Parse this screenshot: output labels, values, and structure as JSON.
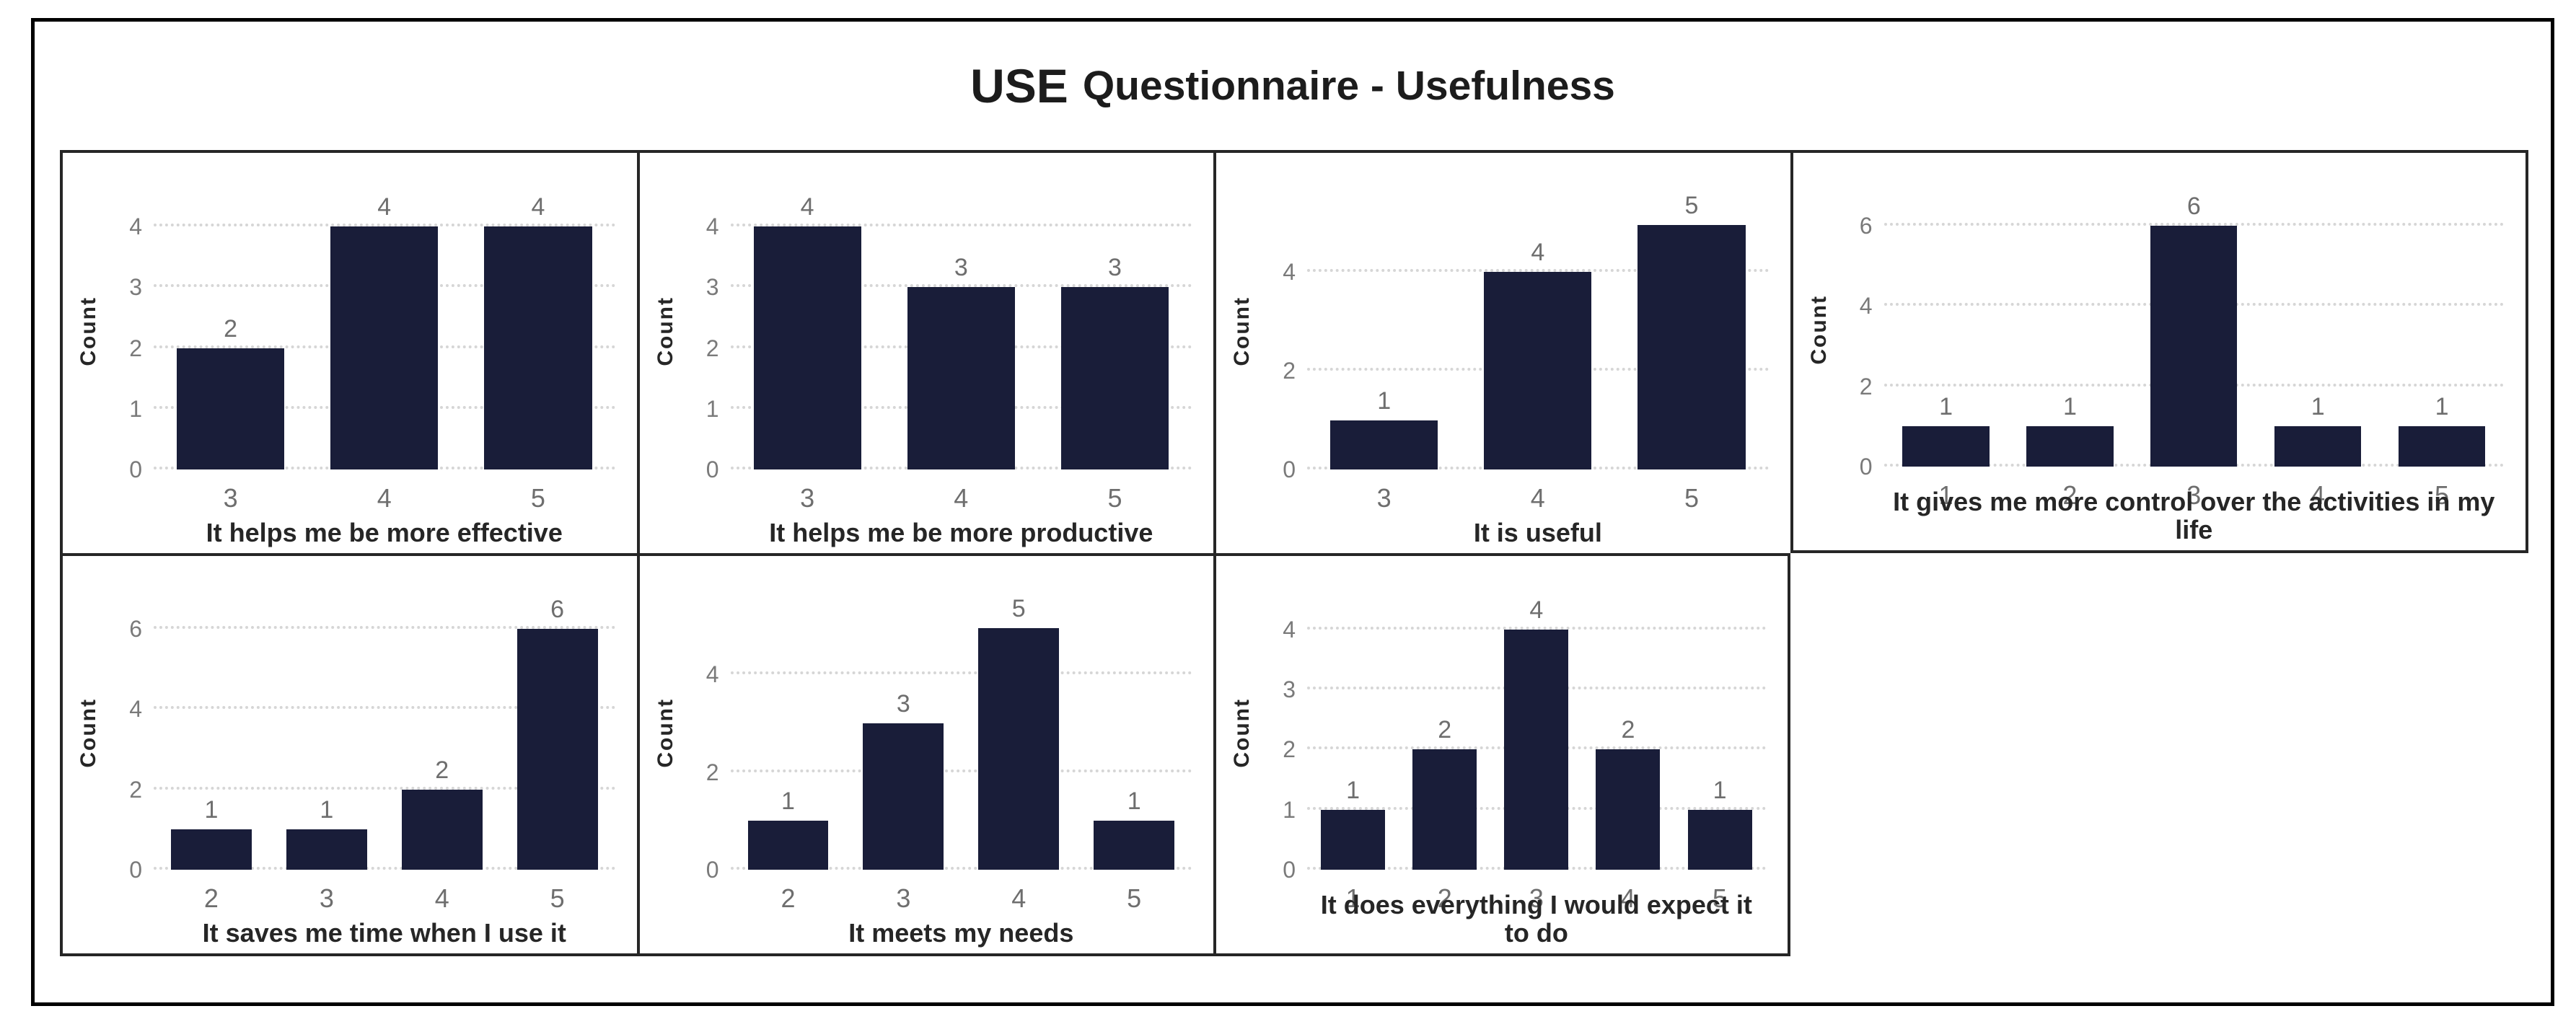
{
  "title": {
    "use": "USE",
    "rest": "Questionnaire - Usefulness",
    "full": "USE Questionnaire - Usefulness"
  },
  "colors": {
    "bar": "#191d39",
    "gridline": "#d6d6d6",
    "tick_label": "#7a7a7a",
    "value_label": "#6e6e6e",
    "axis_title": "#262626",
    "border": "#262626"
  },
  "chart_data": [
    {
      "type": "bar",
      "xlabel": "It helps me be more effective",
      "ylabel": "Count",
      "categories": [
        "3",
        "4",
        "5"
      ],
      "values": [
        2,
        4,
        4
      ],
      "yticks": [
        0,
        1,
        2,
        3,
        4
      ],
      "ymax": 4.55,
      "grid_on": true,
      "row": 1,
      "col": 1
    },
    {
      "type": "bar",
      "xlabel": "It helps me be more productive",
      "ylabel": "Count",
      "categories": [
        "3",
        "4",
        "5"
      ],
      "values": [
        4,
        3,
        3
      ],
      "yticks": [
        0,
        1,
        2,
        3,
        4
      ],
      "ymax": 4.55,
      "grid_on": true,
      "row": 1,
      "col": 2
    },
    {
      "type": "bar",
      "xlabel": "It is useful",
      "ylabel": "Count",
      "categories": [
        "3",
        "4",
        "5"
      ],
      "values": [
        1,
        4,
        5
      ],
      "yticks": [
        0,
        2,
        4
      ],
      "ymax": 5.6,
      "grid_on": true,
      "row": 1,
      "col": 3
    },
    {
      "type": "bar",
      "xlabel": "It gives me more control over the activities in my life",
      "ylabel": "Count",
      "categories": [
        "1",
        "2",
        "3",
        "4",
        "5"
      ],
      "values": [
        1,
        1,
        6,
        1,
        1
      ],
      "yticks": [
        0,
        2,
        4,
        6
      ],
      "ymax": 6.8,
      "grid_on": true,
      "row": 1,
      "col": 4
    },
    {
      "type": "bar",
      "xlabel": "It saves me time when I use it",
      "ylabel": "Count",
      "categories": [
        "2",
        "3",
        "4",
        "5"
      ],
      "values": [
        1,
        1,
        2,
        6
      ],
      "yticks": [
        0,
        2,
        4,
        6
      ],
      "ymax": 6.8,
      "grid_on": true,
      "row": 2,
      "col": 1
    },
    {
      "type": "bar",
      "xlabel": "It meets my needs",
      "ylabel": "Count",
      "categories": [
        "2",
        "3",
        "4",
        "5"
      ],
      "values": [
        1,
        3,
        5,
        1
      ],
      "yticks": [
        0,
        2,
        4
      ],
      "ymax": 5.6,
      "grid_on": true,
      "row": 2,
      "col": 2
    },
    {
      "type": "bar",
      "xlabel": "It does everything I would expect it to do",
      "ylabel": "Count",
      "categories": [
        "1",
        "2",
        "3",
        "4",
        "5"
      ],
      "values": [
        1,
        2,
        4,
        2,
        1
      ],
      "yticks": [
        0,
        1,
        2,
        3,
        4
      ],
      "ymax": 4.55,
      "grid_on": true,
      "row": 2,
      "col": 3
    }
  ]
}
